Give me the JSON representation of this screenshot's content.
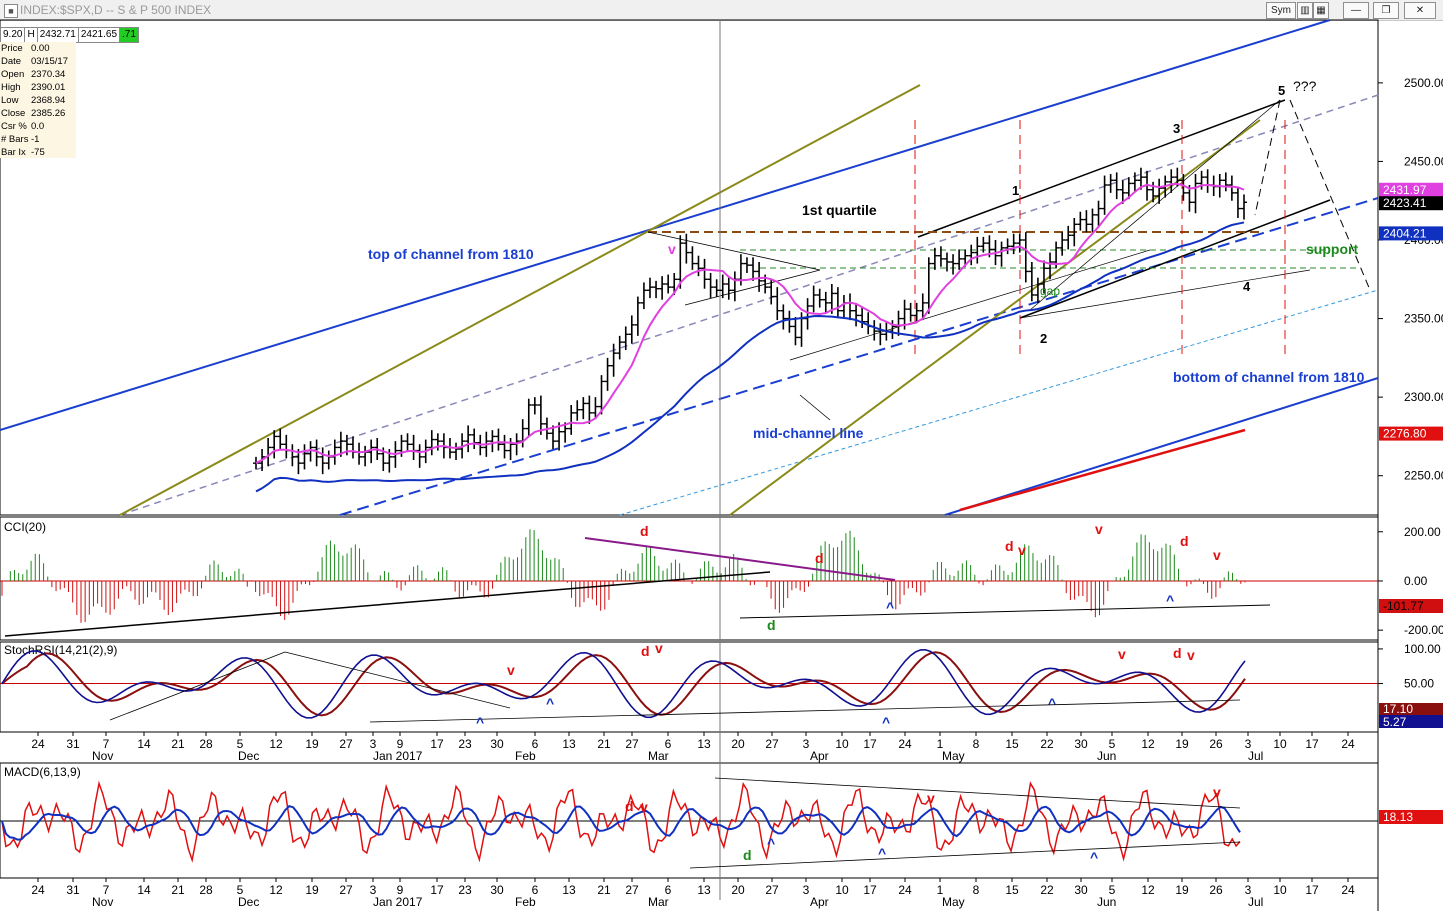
{
  "window": {
    "title": "INDEX:$SPX,D -- S & P 500 INDEX",
    "buttons": {
      "sym": "Sym",
      "minimize": "—",
      "restore": "❐",
      "close": "✕"
    }
  },
  "header": {
    "ohlc": [
      "9.20",
      "H",
      "2432.71",
      "2421.65",
      ".71"
    ]
  },
  "info_panel": [
    {
      "k": "Price",
      "v": "0.00"
    },
    {
      "k": "Date",
      "v": "03/15/17"
    },
    {
      "k": "Open",
      "v": "2370.34"
    },
    {
      "k": "High",
      "v": "2390.01"
    },
    {
      "k": "Low",
      "v": "2368.94"
    },
    {
      "k": "Close",
      "v": "2385.26"
    },
    {
      "k": "Csr %",
      "v": "0.0"
    },
    {
      "k": "# Bars",
      "v": "-1"
    },
    {
      "k": "Bar Ix",
      "v": "-75"
    }
  ],
  "colors": {
    "price_bars": "#000000",
    "ma_pink": "#e040e0",
    "ma_blue": "#1030c0",
    "channel_blue": "#1a3fd0",
    "olive": "#8a8a1a",
    "red": "#e01010",
    "hist_green": "#1a8a1a",
    "hist_red": "#d01010",
    "stoch_blue": "#101090",
    "stoch_brown": "#8a1010"
  },
  "chart_data": [
    {
      "type": "line",
      "name": "price",
      "title": "INDEX:$SPX,D -- S & P 500 INDEX",
      "ylim": [
        2225,
        2540
      ],
      "y_ticks": [
        "2500.00",
        "2450.00",
        "2400.00",
        "2350.00",
        "2300.00",
        "2250.00"
      ],
      "y_tick_values": [
        2500,
        2450,
        2400,
        2350,
        2300,
        2250
      ],
      "price_labels": [
        {
          "text": "2431.97",
          "value": 2431.97,
          "color": "#e040e0"
        },
        {
          "text": "2423.41",
          "value": 2423.41,
          "color": "#000000"
        },
        {
          "text": "2404.21",
          "value": 2404.21,
          "color": "#1030c0"
        },
        {
          "text": "2276.80",
          "value": 2276.8,
          "color": "#e01010"
        }
      ],
      "closes": [
        2258,
        2262,
        2268,
        2275,
        2270,
        2266,
        2262,
        2258,
        2264,
        2268,
        2262,
        2258,
        2262,
        2268,
        2272,
        2270,
        2265,
        2262,
        2265,
        2268,
        2264,
        2258,
        2262,
        2266,
        2272,
        2270,
        2266,
        2262,
        2268,
        2273,
        2272,
        2268,
        2265,
        2267,
        2272,
        2276,
        2271,
        2268,
        2272,
        2275,
        2270,
        2266,
        2270,
        2272,
        2280,
        2295,
        2295,
        2283,
        2277,
        2272,
        2278,
        2280,
        2290,
        2292,
        2296,
        2290,
        2294,
        2310,
        2320,
        2328,
        2335,
        2340,
        2346,
        2360,
        2368,
        2370,
        2369,
        2372,
        2370,
        2375,
        2398,
        2392,
        2385,
        2382,
        2375,
        2370,
        2368,
        2372,
        2368,
        2375,
        2385,
        2384,
        2380,
        2374,
        2370,
        2364,
        2355,
        2350,
        2345,
        2338,
        2350,
        2358,
        2365,
        2362,
        2360,
        2366,
        2355,
        2360,
        2355,
        2352,
        2348,
        2345,
        2342,
        2340,
        2342,
        2345,
        2350,
        2356,
        2352,
        2355,
        2360,
        2385,
        2390,
        2388,
        2386,
        2385,
        2388,
        2390,
        2392,
        2396,
        2398,
        2394,
        2390,
        2395,
        2396,
        2398,
        2400,
        2380,
        2365,
        2372,
        2382,
        2386,
        2395,
        2400,
        2403,
        2410,
        2413,
        2410,
        2416,
        2420,
        2435,
        2438,
        2432,
        2430,
        2436,
        2438,
        2440,
        2432,
        2428,
        2433,
        2437,
        2440,
        2438,
        2430,
        2424,
        2436,
        2440,
        2435,
        2434,
        2438,
        2435,
        2430,
        2420,
        2424
      ],
      "annotations": [
        "top of channel from 1810",
        "1st quartile",
        "mid-channel line",
        "bottom of channel from 1810",
        "support",
        "gap",
        "1",
        "2",
        "3",
        "4",
        "5",
        "???",
        "v"
      ]
    },
    {
      "type": "bar",
      "name": "CCI(20)",
      "title": "CCI(20)",
      "ylim": [
        -240,
        260
      ],
      "y_ticks": [
        "200.00",
        "0.00",
        "-200.00"
      ],
      "y_tick_values": [
        200,
        0,
        -200
      ],
      "last_value": "-101.77",
      "annotations": [
        "d",
        "d",
        "d",
        "d",
        "d",
        "v",
        "v",
        "v",
        "^",
        "^"
      ]
    },
    {
      "type": "line",
      "name": "StochRSI(14,21(2),9)",
      "title": "StochRSI(14,21(2),9)",
      "ylim": [
        -20,
        110
      ],
      "y_ticks": [
        "100.00",
        "50.00"
      ],
      "y_tick_values": [
        100,
        50
      ],
      "last_values": [
        "17.10",
        "5.27"
      ],
      "annotations": [
        "v",
        "d",
        "v",
        "v",
        "d",
        "v",
        "^",
        "^",
        "^",
        "^"
      ]
    },
    {
      "type": "line",
      "name": "MACD(6,13,9)",
      "title": "MACD(6,13,9)",
      "last_value": "18.13",
      "annotations": [
        "d",
        "v",
        "d",
        "^",
        "^",
        "v",
        "v",
        "^"
      ]
    }
  ],
  "x_axis": {
    "day_labels": [
      "24",
      "31",
      "7",
      "14",
      "21",
      "28",
      "5",
      "12",
      "19",
      "27",
      "3",
      "9",
      "17",
      "23",
      "30",
      "6",
      "13",
      "21",
      "27",
      "6",
      "13",
      "20",
      "27",
      "3",
      "10",
      "17",
      "24",
      "1",
      "8",
      "15",
      "22",
      "30",
      "5",
      "12",
      "19",
      "26",
      "3",
      "10",
      "17",
      "24"
    ],
    "month_labels": [
      "Nov",
      "Dec",
      "Jan 2017",
      "Feb",
      "Mar",
      "Apr",
      "May",
      "Jun",
      "Jul"
    ]
  }
}
